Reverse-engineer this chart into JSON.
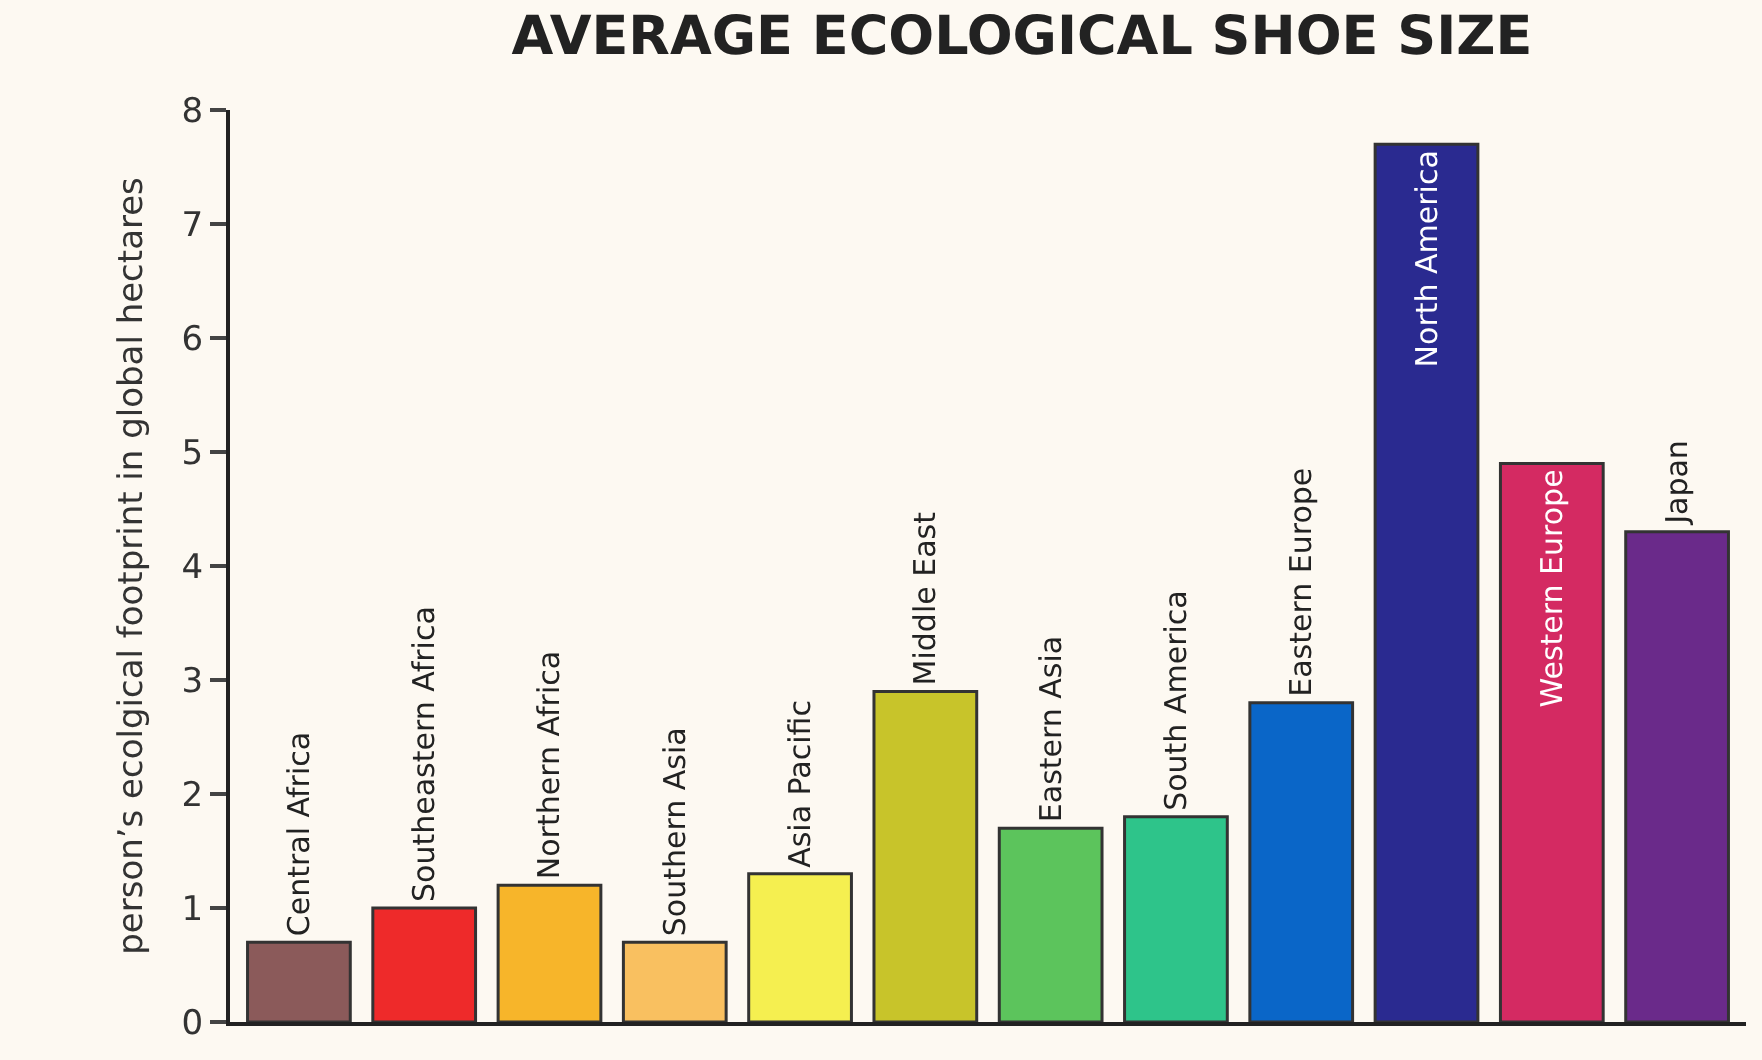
{
  "chart_data": {
    "type": "bar",
    "title": "AVERAGE ECOLOGICAL SHOE SIZE",
    "ylabel": "person’s ecolgical footprint in global hectares",
    "categories": [
      "Central Africa",
      "Southeastern Africa",
      "Northern Africa",
      "Southern Asia",
      "Asia Pacific",
      "Middle East",
      "Eastern Asia",
      "South America",
      "Eastern Europe",
      "North America",
      "Western Europe",
      "Japan"
    ],
    "values": [
      0.7,
      1.0,
      1.2,
      0.7,
      1.3,
      2.9,
      1.7,
      1.8,
      2.8,
      7.7,
      4.9,
      4.3
    ],
    "colors": [
      "#8b5a5a",
      "#ee2a2a",
      "#f7b52a",
      "#f9c060",
      "#f5ef50",
      "#c8c42a",
      "#5cc45c",
      "#2ec48a",
      "#0a66c8",
      "#2a2a90",
      "#d42a62",
      "#6a2a8a"
    ],
    "ylim": [
      0,
      8
    ],
    "yticks": [
      0,
      1,
      2,
      3,
      4,
      5,
      6,
      7,
      8
    ],
    "grid": false,
    "legend": false
  }
}
